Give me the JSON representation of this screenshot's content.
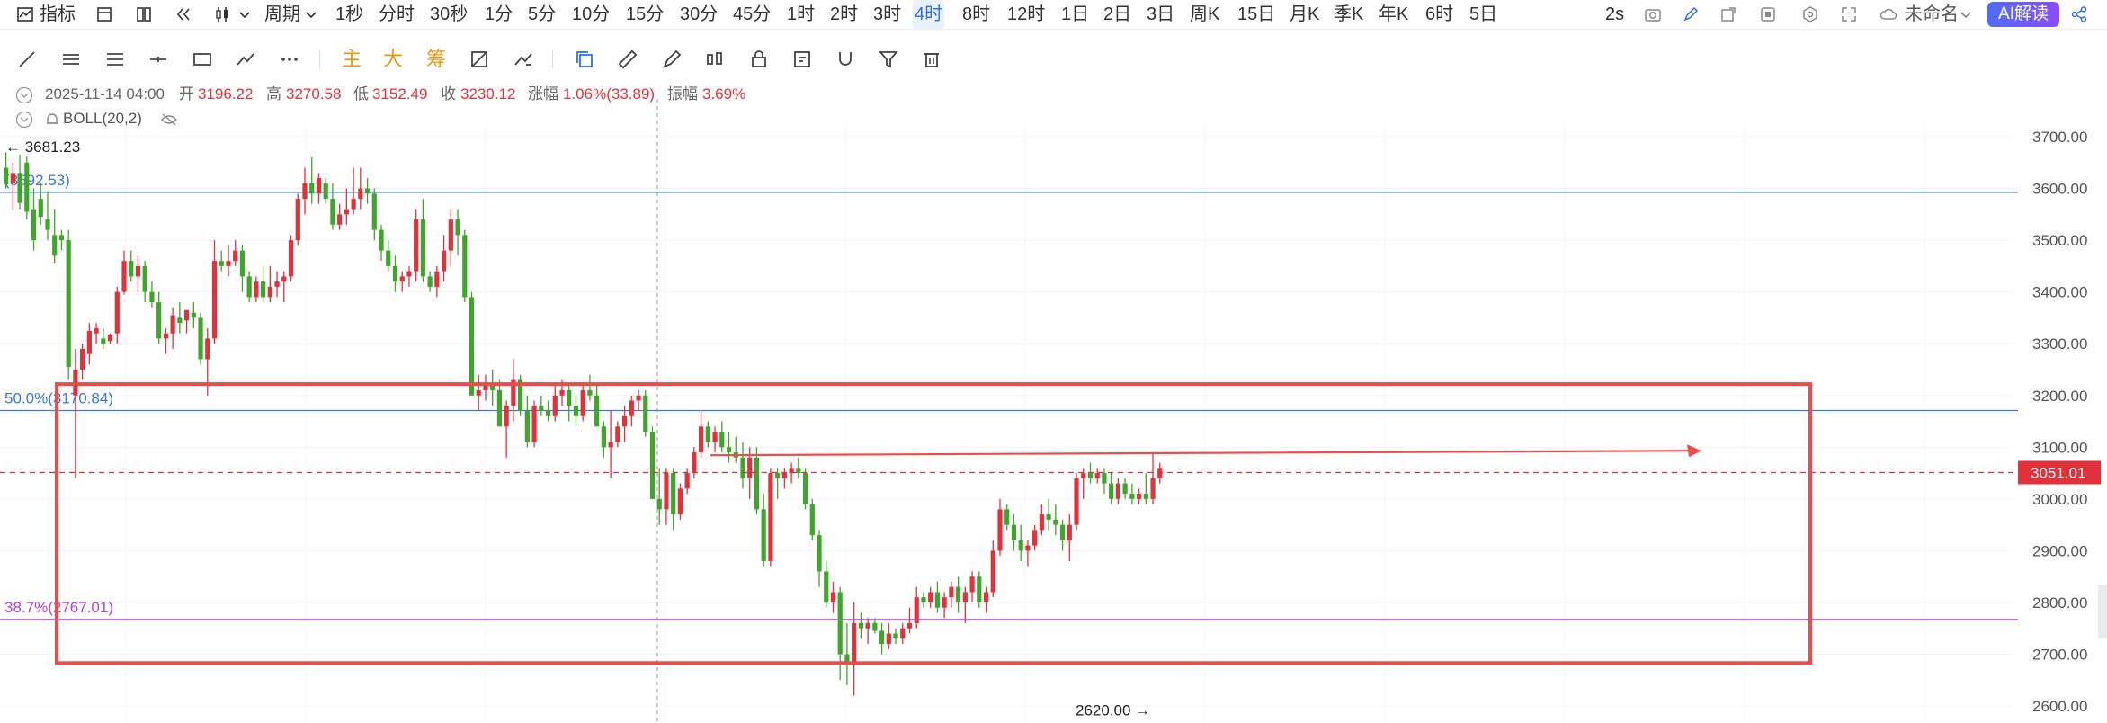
{
  "toolbar": {
    "indicators_label": "指标",
    "period_label": "周期",
    "periods": [
      "1秒",
      "分时",
      "30秒",
      "1分",
      "5分",
      "10分",
      "15分",
      "30分",
      "45分",
      "1时",
      "2时",
      "3时",
      "4时",
      "8时",
      "12时",
      "1日",
      "2日",
      "3日",
      "周K",
      "15日",
      "月K",
      "季K",
      "年K",
      "6时",
      "5日"
    ],
    "active_period": "4时",
    "refresh_label": "2s",
    "layout_name": "未命名",
    "ai_label": "AI解读"
  },
  "drawing_tools": {
    "text_tools": [
      "主",
      "大",
      "筹"
    ]
  },
  "info": {
    "datetime": "2025-11-14 04:00",
    "open_label": "开",
    "open": "3196.22",
    "high_label": "高",
    "high": "3270.58",
    "low_label": "低",
    "low": "3152.49",
    "close_label": "收",
    "close": "3230.12",
    "change_label": "涨幅",
    "change": "1.06%(33.89)",
    "amplitude_label": "振幅",
    "amplitude": "3.69%",
    "indicator": "BOLL(20,2)"
  },
  "colors": {
    "up": "#e0323a",
    "down": "#3fa52b",
    "fib_blue": "#3a78d9",
    "fib_purple": "#b13fe6",
    "box": "#ee4b4b",
    "price_tag": "#e0323a"
  },
  "chart_data": {
    "type": "candlestick",
    "y_axis": {
      "ticks": [
        "3700.00",
        "3600.00",
        "3500.00",
        "3400.00",
        "3300.00",
        "3200.00",
        "3100.00",
        "3000.00",
        "2900.00",
        "2800.00",
        "2700.00",
        "2600.00"
      ],
      "min": 2600,
      "max": 3700
    },
    "current_price": "3051.01",
    "high_marker": "3681.23",
    "low_marker": "2620.00",
    "fib_levels": [
      {
        "label": "(3592.53)",
        "price": 3592.53,
        "color": "blue"
      },
      {
        "label": "50.0%(3170.84)",
        "price": 3170.84,
        "color": "blue"
      },
      {
        "label": "38.7%(2767.01)",
        "price": 2767.01,
        "color": "purple"
      }
    ],
    "highlight_box": {
      "price_top": 3222,
      "price_bottom": 2683
    },
    "arrow": {
      "price": 3088
    },
    "crosshair_candle_index": 68,
    "candles": [
      [
        3640,
        3670,
        3600,
        3608
      ],
      [
        3610,
        3650,
        3560,
        3630
      ],
      [
        3630,
        3665,
        3560,
        3572
      ],
      [
        3650,
        3662,
        3540,
        3555
      ],
      [
        3560,
        3600,
        3480,
        3500
      ],
      [
        3580,
        3610,
        3530,
        3545
      ],
      [
        3540,
        3595,
        3500,
        3520
      ],
      [
        3510,
        3560,
        3455,
        3470
      ],
      [
        3510,
        3520,
        3480,
        3500
      ],
      [
        3500,
        3520,
        3230,
        3255
      ],
      [
        3200,
        3290,
        3040,
        3250
      ],
      [
        3250,
        3300,
        3230,
        3290
      ],
      [
        3280,
        3340,
        3260,
        3325
      ],
      [
        3320,
        3340,
        3300,
        3330
      ],
      [
        3310,
        3330,
        3290,
        3300
      ],
      [
        3305,
        3320,
        3300,
        3318
      ],
      [
        3320,
        3410,
        3300,
        3400
      ],
      [
        3400,
        3480,
        3395,
        3460
      ],
      [
        3460,
        3480,
        3420,
        3430
      ],
      [
        3430,
        3470,
        3400,
        3450
      ],
      [
        3450,
        3460,
        3380,
        3400
      ],
      [
        3400,
        3420,
        3370,
        3380
      ],
      [
        3380,
        3400,
        3300,
        3310
      ],
      [
        3310,
        3330,
        3280,
        3320
      ],
      [
        3320,
        3370,
        3290,
        3355
      ],
      [
        3350,
        3380,
        3320,
        3340
      ],
      [
        3345,
        3360,
        3320,
        3365
      ],
      [
        3360,
        3380,
        3330,
        3350
      ],
      [
        3350,
        3360,
        3260,
        3270
      ],
      [
        3270,
        3330,
        3200,
        3310
      ],
      [
        3310,
        3500,
        3300,
        3460
      ],
      [
        3460,
        3480,
        3440,
        3450
      ],
      [
        3450,
        3490,
        3430,
        3460
      ],
      [
        3460,
        3500,
        3450,
        3480
      ],
      [
        3480,
        3490,
        3400,
        3430
      ],
      [
        3430,
        3440,
        3380,
        3390
      ],
      [
        3390,
        3430,
        3380,
        3420
      ],
      [
        3420,
        3450,
        3380,
        3390
      ],
      [
        3390,
        3450,
        3380,
        3410
      ],
      [
        3410,
        3440,
        3390,
        3420
      ],
      [
        3420,
        3440,
        3380,
        3430
      ],
      [
        3430,
        3510,
        3420,
        3500
      ],
      [
        3500,
        3590,
        3490,
        3580
      ],
      [
        3580,
        3640,
        3550,
        3610
      ],
      [
        3610,
        3660,
        3570,
        3590
      ],
      [
        3590,
        3630,
        3570,
        3620
      ],
      [
        3610,
        3620,
        3570,
        3580
      ],
      [
        3580,
        3610,
        3520,
        3530
      ],
      [
        3530,
        3570,
        3520,
        3550
      ],
      [
        3550,
        3600,
        3530,
        3560
      ],
      [
        3560,
        3640,
        3550,
        3580
      ],
      [
        3580,
        3640,
        3560,
        3600
      ],
      [
        3600,
        3620,
        3570,
        3590
      ],
      [
        3590,
        3600,
        3500,
        3520
      ],
      [
        3520,
        3530,
        3460,
        3480
      ],
      [
        3480,
        3500,
        3440,
        3450
      ],
      [
        3450,
        3470,
        3400,
        3420
      ],
      [
        3420,
        3440,
        3400,
        3430
      ],
      [
        3430,
        3450,
        3410,
        3440
      ],
      [
        3440,
        3560,
        3420,
        3540
      ],
      [
        3540,
        3580,
        3420,
        3430
      ],
      [
        3430,
        3440,
        3400,
        3410
      ],
      [
        3410,
        3450,
        3390,
        3440
      ],
      [
        3440,
        3510,
        3420,
        3480
      ],
      [
        3480,
        3560,
        3450,
        3540
      ],
      [
        3540,
        3560,
        3470,
        3510
      ],
      [
        3510,
        3520,
        3380,
        3390
      ],
      [
        3390,
        3400,
        3200,
        3200
      ],
      [
        3200,
        3240,
        3170,
        3210
      ],
      [
        3210,
        3240,
        3190,
        3220
      ],
      [
        3220,
        3250,
        3180,
        3210
      ],
      [
        3210,
        3230,
        3140,
        3140
      ],
      [
        3140,
        3190,
        3080,
        3180
      ],
      [
        3180,
        3270,
        3150,
        3230
      ],
      [
        3230,
        3240,
        3160,
        3170
      ],
      [
        3170,
        3200,
        3100,
        3110
      ],
      [
        3110,
        3190,
        3100,
        3180
      ],
      [
        3180,
        3200,
        3160,
        3170
      ],
      [
        3170,
        3190,
        3150,
        3160
      ],
      [
        3160,
        3220,
        3150,
        3200
      ],
      [
        3200,
        3230,
        3180,
        3210
      ],
      [
        3210,
        3220,
        3150,
        3180
      ],
      [
        3180,
        3200,
        3140,
        3160
      ],
      [
        3160,
        3220,
        3150,
        3210
      ],
      [
        3210,
        3240,
        3190,
        3200
      ],
      [
        3200,
        3220,
        3140,
        3140
      ],
      [
        3140,
        3150,
        3080,
        3100
      ],
      [
        3100,
        3170,
        3040,
        3110
      ],
      [
        3110,
        3150,
        3100,
        3140
      ],
      [
        3140,
        3180,
        3110,
        3160
      ],
      [
        3160,
        3200,
        3140,
        3190
      ],
      [
        3190,
        3210,
        3170,
        3200
      ],
      [
        3200,
        3210,
        3120,
        3130
      ],
      [
        3130,
        3140,
        3000,
        3000
      ],
      [
        3000,
        3060,
        2950,
        2980
      ],
      [
        2980,
        3060,
        2950,
        3050
      ],
      [
        3050,
        3060,
        2940,
        2970
      ],
      [
        2970,
        3030,
        2960,
        3020
      ],
      [
        3020,
        3060,
        3010,
        3050
      ],
      [
        3050,
        3100,
        3040,
        3090
      ],
      [
        3090,
        3170,
        3080,
        3140
      ],
      [
        3140,
        3150,
        3100,
        3110
      ],
      [
        3110,
        3140,
        3090,
        3130
      ],
      [
        3130,
        3150,
        3090,
        3100
      ],
      [
        3100,
        3130,
        3070,
        3090
      ],
      [
        3090,
        3120,
        3070,
        3080
      ],
      [
        3080,
        3110,
        3020,
        3040
      ],
      [
        3040,
        3100,
        3000,
        3080
      ],
      [
        3080,
        3100,
        2970,
        2980
      ],
      [
        2980,
        3010,
        2870,
        2880
      ],
      [
        2880,
        3060,
        2870,
        3050
      ],
      [
        3050,
        3060,
        3000,
        3040
      ],
      [
        3040,
        3060,
        3020,
        3050
      ],
      [
        3050,
        3070,
        3030,
        3060
      ],
      [
        3060,
        3080,
        3040,
        3050
      ],
      [
        3050,
        3060,
        2980,
        2990
      ],
      [
        2990,
        3000,
        2920,
        2930
      ],
      [
        2930,
        2940,
        2830,
        2860
      ],
      [
        2860,
        2880,
        2790,
        2800
      ],
      [
        2800,
        2840,
        2780,
        2820
      ],
      [
        2820,
        2830,
        2650,
        2700
      ],
      [
        2700,
        2760,
        2640,
        2680
      ],
      [
        2680,
        2800,
        2620,
        2760
      ],
      [
        2760,
        2780,
        2730,
        2750
      ],
      [
        2750,
        2770,
        2720,
        2760
      ],
      [
        2760,
        2770,
        2740,
        2745
      ],
      [
        2745,
        2760,
        2700,
        2720
      ],
      [
        2720,
        2760,
        2710,
        2740
      ],
      [
        2740,
        2750,
        2720,
        2730
      ],
      [
        2730,
        2760,
        2720,
        2750
      ],
      [
        2750,
        2790,
        2740,
        2760
      ],
      [
        2760,
        2830,
        2750,
        2810
      ],
      [
        2810,
        2820,
        2790,
        2800
      ],
      [
        2800,
        2830,
        2790,
        2820
      ],
      [
        2820,
        2840,
        2780,
        2790
      ],
      [
        2790,
        2820,
        2770,
        2810
      ],
      [
        2810,
        2840,
        2790,
        2830
      ],
      [
        2830,
        2850,
        2780,
        2800
      ],
      [
        2800,
        2830,
        2760,
        2820
      ],
      [
        2820,
        2860,
        2800,
        2850
      ],
      [
        2850,
        2860,
        2790,
        2800
      ],
      [
        2800,
        2830,
        2780,
        2820
      ],
      [
        2820,
        2920,
        2810,
        2900
      ],
      [
        2900,
        3000,
        2890,
        2980
      ],
      [
        2980,
        2990,
        2940,
        2950
      ],
      [
        2950,
        2970,
        2900,
        2920
      ],
      [
        2920,
        2950,
        2880,
        2900
      ],
      [
        2900,
        2920,
        2870,
        2910
      ],
      [
        2910,
        2950,
        2900,
        2940
      ],
      [
        2940,
        2990,
        2930,
        2970
      ],
      [
        2970,
        3000,
        2940,
        2960
      ],
      [
        2960,
        2990,
        2930,
        2950
      ],
      [
        2950,
        2960,
        2900,
        2920
      ],
      [
        2920,
        2970,
        2880,
        2950
      ],
      [
        2950,
        3050,
        2940,
        3040
      ],
      [
        3040,
        3060,
        3000,
        3050
      ],
      [
        3050,
        3070,
        3030,
        3040
      ],
      [
        3040,
        3060,
        3030,
        3050
      ],
      [
        3050,
        3060,
        3010,
        3030
      ],
      [
        3030,
        3050,
        2990,
        3000
      ],
      [
        3000,
        3040,
        2990,
        3030
      ],
      [
        3030,
        3040,
        3000,
        3010
      ],
      [
        3010,
        3030,
        2990,
        3000
      ],
      [
        3000,
        3020,
        2990,
        3010
      ],
      [
        3010,
        3050,
        2990,
        3000
      ],
      [
        3000,
        3090,
        2990,
        3040
      ],
      [
        3040,
        3070,
        3030,
        3060
      ]
    ]
  }
}
